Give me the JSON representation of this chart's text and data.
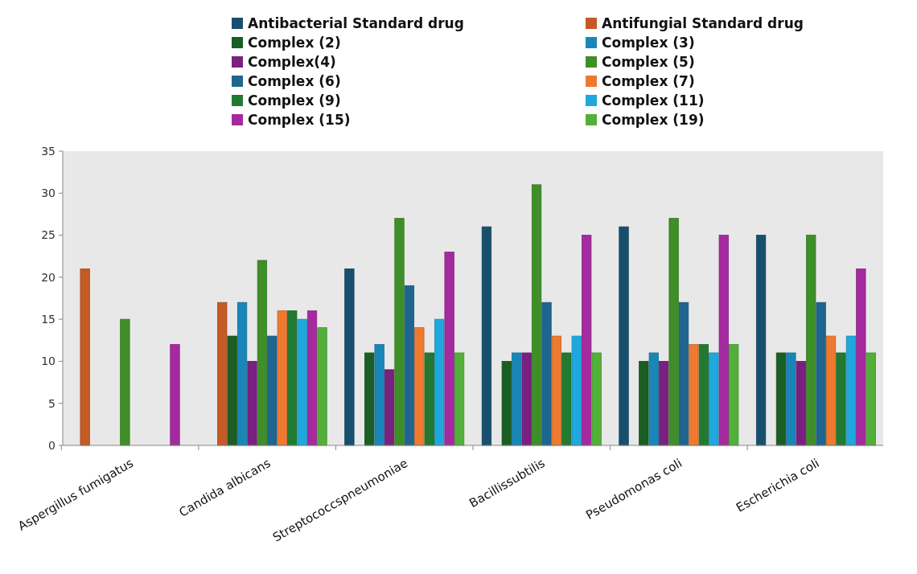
{
  "chart_data": {
    "type": "bar",
    "categories": [
      "Aspergillus fumigatus",
      "Candida albicans",
      "Streptococcspneumoniae",
      "Bacillissubtilis",
      "Pseudomonas coli",
      "Escherichia coli"
    ],
    "series": [
      {
        "name": "Antibacterial Standard drug",
        "color": "#17506e",
        "values": [
          0,
          0,
          21,
          26,
          26,
          25
        ]
      },
      {
        "name": "Antifungial Standard drug",
        "color": "#c55a24",
        "values": [
          21,
          17,
          0,
          0,
          0,
          0
        ]
      },
      {
        "name": "Complex (2)",
        "color": "#1a5e24",
        "values": [
          0,
          13,
          11,
          10,
          10,
          11
        ]
      },
      {
        "name": "Complex (3)",
        "color": "#1a86b8",
        "values": [
          0,
          17,
          12,
          11,
          11,
          11
        ]
      },
      {
        "name": "Complex(4)",
        "color": "#7a2080",
        "values": [
          0,
          10,
          9,
          11,
          10,
          10
        ]
      },
      {
        "name": "Complex (5)",
        "color": "#3f8f28",
        "values": [
          15,
          22,
          27,
          31,
          27,
          25
        ]
      },
      {
        "name": "Complex (6)",
        "color": "#1e6690",
        "values": [
          0,
          13,
          19,
          17,
          17,
          17
        ]
      },
      {
        "name": "Complex (7)",
        "color": "#ee7a30",
        "values": [
          0,
          16,
          14,
          13,
          12,
          13
        ]
      },
      {
        "name": "Complex (9)",
        "color": "#217a30",
        "values": [
          0,
          16,
          11,
          11,
          12,
          11
        ]
      },
      {
        "name": "Complex (11)",
        "color": "#1ea8de",
        "values": [
          0,
          15,
          15,
          13,
          11,
          13
        ]
      },
      {
        "name": "Complex (15)",
        "color": "#a52aa0",
        "values": [
          12,
          16,
          23,
          25,
          25,
          21
        ]
      },
      {
        "name": "Complex (19)",
        "color": "#52b038",
        "values": [
          0,
          14,
          11,
          11,
          12,
          11
        ]
      }
    ],
    "ylim": [
      0,
      35
    ],
    "yticks": [
      0,
      5,
      10,
      15,
      20,
      25,
      30,
      35
    ],
    "legend": "top"
  }
}
